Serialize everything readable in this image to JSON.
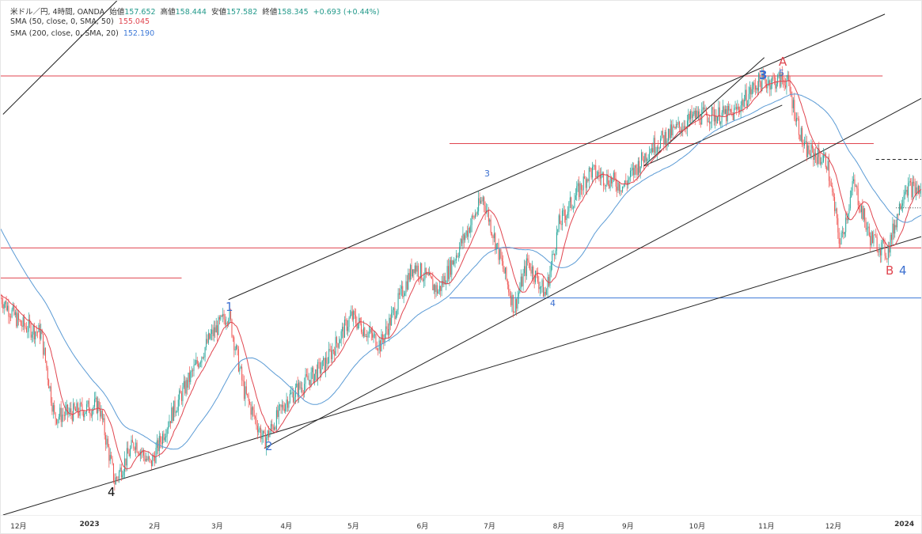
{
  "legend": {
    "symbol": "米ドル／円, 4時間, OANDA",
    "open_label": "始値",
    "open": "157.652",
    "high_label": "高値",
    "high": "158.444",
    "low_label": "安値",
    "low": "157.582",
    "close_label": "終値",
    "close": "158.345",
    "change": "+0.693 (+0.44%)",
    "sma50_label": "SMA (50, close, 0, SMA, 50)",
    "sma50_value": "155.045",
    "sma200_label": "SMA (200, close, 0, SMA, 20)",
    "sma200_value": "152.190"
  },
  "colors": {
    "up": "#26a69a",
    "down": "#ef5350",
    "sma50": "#e0454f",
    "sma200": "#5b9bd5",
    "hline_red": "#e0454f",
    "hline_blue": "#3b78d8",
    "trend": "#222222"
  },
  "chart_data": {
    "type": "candlestick",
    "xlim": [
      "2022-11-26",
      "2024-01-13"
    ],
    "ylim": [
      125.6,
      156.4
    ],
    "x_tick_labels": [
      {
        "date": "2022-12-01",
        "label": "12月"
      },
      {
        "date": "2023-01-01",
        "label": "2023"
      },
      {
        "date": "2023-02-01",
        "label": "2月"
      },
      {
        "date": "2023-03-01",
        "label": "3月"
      },
      {
        "date": "2023-04-01",
        "label": "4月"
      },
      {
        "date": "2023-05-01",
        "label": "5月"
      },
      {
        "date": "2023-06-01",
        "label": "6月"
      },
      {
        "date": "2023-07-01",
        "label": "7月"
      },
      {
        "date": "2023-08-01",
        "label": "8月"
      },
      {
        "date": "2023-09-01",
        "label": "9月"
      },
      {
        "date": "2023-10-01",
        "label": "10月"
      },
      {
        "date": "2023-11-01",
        "label": "11月"
      },
      {
        "date": "2023-12-01",
        "label": "12月"
      },
      {
        "date": "2024-01-01",
        "label": "2024"
      }
    ],
    "price_path": [
      [
        "2022-11-26",
        138.6
      ],
      [
        "2022-12-05",
        137.0
      ],
      [
        "2022-12-14",
        136.5
      ],
      [
        "2022-12-20",
        131.5
      ],
      [
        "2022-12-30",
        131.8
      ],
      [
        "2023-01-09",
        132.2
      ],
      [
        "2023-01-16",
        127.6
      ],
      [
        "2023-01-25",
        130.0
      ],
      [
        "2023-02-01",
        128.6
      ],
      [
        "2023-02-10",
        131.5
      ],
      [
        "2023-02-28",
        136.3
      ],
      [
        "2023-03-08",
        137.7
      ],
      [
        "2023-03-15",
        133.0
      ],
      [
        "2023-03-24",
        130.0
      ],
      [
        "2023-04-03",
        132.5
      ],
      [
        "2023-04-20",
        134.6
      ],
      [
        "2023-05-02",
        137.5
      ],
      [
        "2023-05-15",
        135.8
      ],
      [
        "2023-05-30",
        140.6
      ],
      [
        "2023-06-10",
        139.0
      ],
      [
        "2023-06-30",
        144.6
      ],
      [
        "2023-07-14",
        138.0
      ],
      [
        "2023-07-20",
        140.8
      ],
      [
        "2023-07-28",
        138.8
      ],
      [
        "2023-08-03",
        143.0
      ],
      [
        "2023-08-17",
        146.2
      ],
      [
        "2023-09-01",
        145.3
      ],
      [
        "2023-09-13",
        147.6
      ],
      [
        "2023-10-03",
        149.5
      ],
      [
        "2023-10-20",
        149.6
      ],
      [
        "2023-10-31",
        151.5
      ],
      [
        "2023-11-13",
        151.7
      ],
      [
        "2023-11-21",
        147.5
      ],
      [
        "2023-12-01",
        146.8
      ],
      [
        "2023-12-07",
        141.8
      ],
      [
        "2023-12-13",
        145.5
      ],
      [
        "2023-12-20",
        142.3
      ],
      [
        "2023-12-28",
        141.3
      ],
      [
        "2024-01-05",
        145.3
      ],
      [
        "2024-01-12",
        145.0
      ]
    ],
    "sma_periods": [
      50,
      200
    ],
    "horizontal_lines": [
      {
        "price": 151.9,
        "from": "2022-11-26",
        "to": "2023-12-26",
        "color": "red"
      },
      {
        "price": 147.85,
        "from": "2023-06-15",
        "to": "2023-12-22",
        "color": "red"
      },
      {
        "price": 141.6,
        "from": "2022-11-26",
        "to": "2024-01-13",
        "color": "red"
      },
      {
        "price": 139.8,
        "from": "2022-11-26",
        "to": "2023-02-15",
        "color": "red"
      },
      {
        "price": 138.6,
        "from": "2023-06-15",
        "to": "2024-01-13",
        "color": "blue"
      },
      {
        "price": 146.9,
        "from": "2023-12-23",
        "to": "2024-01-13",
        "color": "black-dashed"
      },
      {
        "price": 144.0,
        "from": "2024-01-01",
        "to": "2024-01-13",
        "color": "black-dotted"
      }
    ],
    "trend_lines": [
      [
        [
          "2023-03-08",
          138.5
        ],
        [
          "2023-12-27",
          155.6
        ]
      ],
      [
        [
          "2022-11-27",
          149.6
        ],
        [
          "2023-01-17",
          156.4
        ]
      ],
      [
        [
          "2023-03-24",
          129.6
        ],
        [
          "2024-01-13",
          150.6
        ]
      ],
      [
        [
          "2022-11-27",
          125.6
        ],
        [
          "2024-01-13",
          142.3
        ]
      ],
      [
        [
          "2023-09-10",
          146.5
        ],
        [
          "2023-11-03",
          153.0
        ]
      ],
      [
        [
          "2023-09-10",
          146.5
        ],
        [
          "2023-11-11",
          150.15
        ]
      ]
    ],
    "wave_labels": [
      {
        "text": "1",
        "color": "blue"
      },
      {
        "text": "2",
        "color": "blue"
      },
      {
        "text": "3",
        "color": "blue"
      },
      {
        "text": "4",
        "color": "blue"
      },
      {
        "text": "3",
        "color": "blue"
      },
      {
        "text": "5",
        "color": "blue"
      },
      {
        "text": "A",
        "color": "red"
      },
      {
        "text": "B",
        "color": "red"
      },
      {
        "text": "4",
        "color": "blue"
      },
      {
        "text": "4",
        "color": "black"
      }
    ]
  }
}
